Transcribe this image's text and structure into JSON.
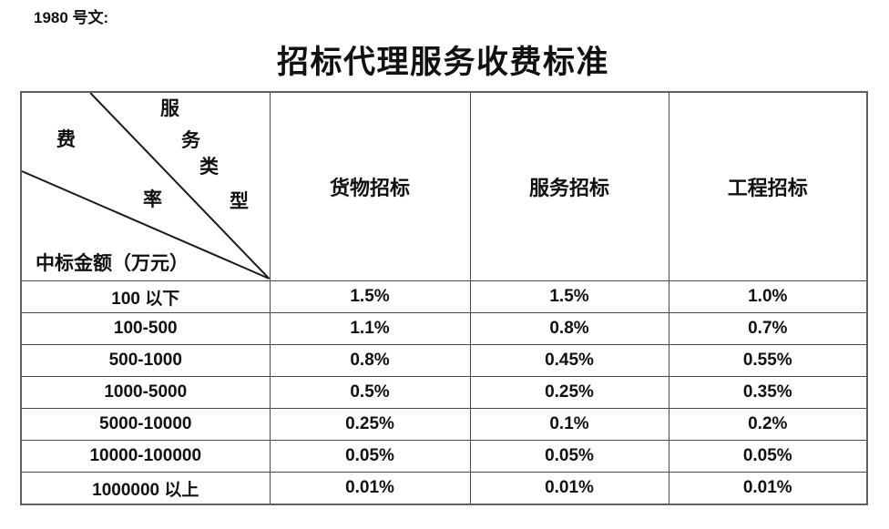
{
  "page": {
    "doc_label": "1980 号文:",
    "title": "招标代理服务收费标准"
  },
  "table": {
    "corner": {
      "col_axis_label": "服务类型",
      "col_axis_chars": [
        "服",
        "务",
        "类",
        "型"
      ],
      "rate_axis_label": "费率",
      "rate_axis_chars": [
        "费",
        "率"
      ],
      "row_axis_label": "中标金额（万元）"
    },
    "columns": [
      "货物招标",
      "服务招标",
      "工程招标"
    ],
    "rows": [
      {
        "range": "100 以下",
        "values": [
          "1.5%",
          "1.5%",
          "1.0%"
        ]
      },
      {
        "range": "100-500",
        "values": [
          "1.1%",
          "0.8%",
          "0.7%"
        ]
      },
      {
        "range": "500-1000",
        "values": [
          "0.8%",
          "0.45%",
          "0.55%"
        ]
      },
      {
        "range": "1000-5000",
        "values": [
          "0.5%",
          "0.25%",
          "0.35%"
        ]
      },
      {
        "range": "5000-10000",
        "values": [
          "0.25%",
          "0.1%",
          "0.2%"
        ]
      },
      {
        "range": "10000-100000",
        "values": [
          "0.05%",
          "0.05%",
          "0.05%"
        ]
      },
      {
        "range": "1000000 以上",
        "values": [
          "0.01%",
          "0.01%",
          "0.01%"
        ]
      }
    ]
  },
  "colors": {
    "text": "#111111",
    "border_outer": "#5f5f5f",
    "border_inner": "#4a4a4a",
    "diagonal_line": "#1a1a1a",
    "background": "#ffffff"
  }
}
